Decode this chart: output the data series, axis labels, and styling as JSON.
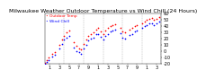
{
  "title": "Milwaukee Weather Outdoor Temperature vs Wind Chill (24 Hours)",
  "temp_color": "#ff0000",
  "windchill_color": "#0000ff",
  "bg_color": "#ffffff",
  "grid_color": "#888888",
  "ylim": [
    -20,
    60
  ],
  "ytick_values": [
    -20,
    -10,
    0,
    10,
    20,
    30,
    40,
    50,
    60
  ],
  "ytick_labels": [
    "-20",
    "-10",
    "0",
    "10",
    "20",
    "30",
    "40",
    "50",
    "60"
  ],
  "temp_data": [
    [
      0,
      -18
    ],
    [
      0.4,
      -14
    ],
    [
      0.8,
      -10
    ],
    [
      1.5,
      -5
    ],
    [
      2.0,
      -2
    ],
    [
      3.0,
      10
    ],
    [
      3.5,
      18
    ],
    [
      4.0,
      25
    ],
    [
      4.5,
      30
    ],
    [
      5.0,
      33
    ],
    [
      6.0,
      15
    ],
    [
      6.5,
      8
    ],
    [
      7.0,
      5
    ],
    [
      7.5,
      3
    ],
    [
      8.0,
      12
    ],
    [
      8.5,
      18
    ],
    [
      9.0,
      25
    ],
    [
      9.5,
      28
    ],
    [
      10.0,
      30
    ],
    [
      10.5,
      35
    ],
    [
      11.0,
      37
    ],
    [
      11.5,
      32
    ],
    [
      12.0,
      28
    ],
    [
      12.5,
      33
    ],
    [
      13.0,
      38
    ],
    [
      13.5,
      40
    ],
    [
      14.0,
      42
    ],
    [
      14.5,
      43
    ],
    [
      15.5,
      38
    ],
    [
      16.0,
      32
    ],
    [
      16.5,
      30
    ],
    [
      17.5,
      35
    ],
    [
      18.0,
      37
    ],
    [
      18.5,
      40
    ],
    [
      19.0,
      42
    ],
    [
      20.0,
      45
    ],
    [
      20.5,
      48
    ],
    [
      21.0,
      50
    ],
    [
      21.5,
      52
    ],
    [
      22.0,
      53
    ],
    [
      22.5,
      50
    ],
    [
      23.0,
      52
    ],
    [
      23.5,
      55
    ]
  ],
  "windchill_data": [
    [
      0,
      -20
    ],
    [
      0.4,
      -17
    ],
    [
      0.8,
      -14
    ],
    [
      1.5,
      -9
    ],
    [
      2.0,
      -6
    ],
    [
      3.0,
      4
    ],
    [
      3.5,
      12
    ],
    [
      4.0,
      18
    ],
    [
      4.5,
      22
    ],
    [
      5.0,
      25
    ],
    [
      6.0,
      6
    ],
    [
      6.5,
      0
    ],
    [
      7.0,
      -2
    ],
    [
      7.5,
      -4
    ],
    [
      8.0,
      5
    ],
    [
      8.5,
      10
    ],
    [
      9.0,
      17
    ],
    [
      9.5,
      20
    ],
    [
      10.0,
      22
    ],
    [
      10.5,
      27
    ],
    [
      11.0,
      28
    ],
    [
      11.5,
      23
    ],
    [
      12.0,
      18
    ],
    [
      12.5,
      24
    ],
    [
      13.0,
      28
    ],
    [
      13.5,
      31
    ],
    [
      14.0,
      33
    ],
    [
      14.5,
      35
    ],
    [
      15.5,
      29
    ],
    [
      16.0,
      22
    ],
    [
      16.5,
      20
    ],
    [
      17.5,
      26
    ],
    [
      18.0,
      28
    ],
    [
      18.5,
      31
    ],
    [
      19.0,
      33
    ],
    [
      20.0,
      37
    ],
    [
      20.5,
      40
    ],
    [
      21.0,
      42
    ],
    [
      21.5,
      44
    ],
    [
      22.0,
      45
    ],
    [
      22.5,
      42
    ],
    [
      23.0,
      44
    ],
    [
      23.5,
      47
    ]
  ],
  "vgrid_x": [
    4,
    8,
    12,
    16,
    20,
    24
  ],
  "xtick_positions": [
    1,
    3,
    5,
    7,
    9,
    11,
    13,
    15,
    17,
    19,
    21,
    23
  ],
  "xtick_labels": [
    "1",
    "3",
    "5",
    "7",
    "9",
    "1",
    "3",
    "5",
    "7",
    "9",
    "1",
    "3"
  ],
  "marker_size": 1.5,
  "title_fontsize": 4.5,
  "tick_fontsize": 3.5,
  "legend_fontsize": 3.2
}
